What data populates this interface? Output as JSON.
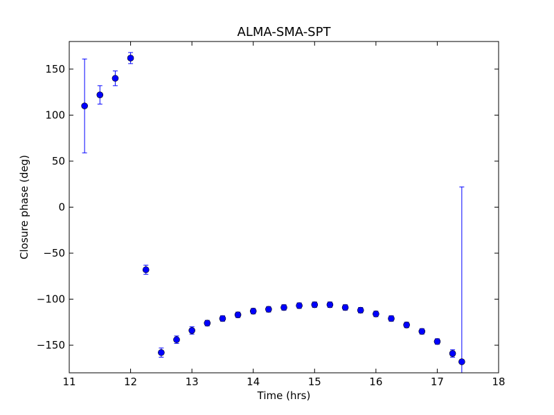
{
  "chart_data": {
    "type": "scatter",
    "title": "ALMA-SMA-SPT",
    "xlabel": "Time (hrs)",
    "ylabel": "Closure phase (deg)",
    "xlim": [
      11,
      18
    ],
    "ylim": [
      -180,
      180
    ],
    "xticks": [
      11,
      12,
      13,
      14,
      15,
      16,
      17,
      18
    ],
    "yticks": [
      -150,
      -100,
      -50,
      0,
      50,
      100,
      150
    ],
    "xtick_labels": [
      "11",
      "12",
      "13",
      "14",
      "15",
      "16",
      "17",
      "18"
    ],
    "ytick_labels": [
      "−150",
      "−100",
      "−50",
      "0",
      "50",
      "100",
      "150"
    ],
    "grid": false,
    "marker_color": "#0000ff",
    "marker_edge_color": "#000000",
    "errorbar_color": "#0000ff",
    "points": [
      {
        "x": 11.25,
        "y": 110,
        "err": 51
      },
      {
        "x": 11.5,
        "y": 122,
        "err": 10
      },
      {
        "x": 11.75,
        "y": 140,
        "err": 8
      },
      {
        "x": 12.0,
        "y": 162,
        "err": 6
      },
      {
        "x": 12.25,
        "y": -68,
        "err": 5
      },
      {
        "x": 12.5,
        "y": -158,
        "err": 5
      },
      {
        "x": 12.75,
        "y": -144,
        "err": 4
      },
      {
        "x": 13.0,
        "y": -134,
        "err": 4
      },
      {
        "x": 13.25,
        "y": -126,
        "err": 3
      },
      {
        "x": 13.5,
        "y": -121,
        "err": 3
      },
      {
        "x": 13.75,
        "y": -117,
        "err": 3
      },
      {
        "x": 14.0,
        "y": -113,
        "err": 3
      },
      {
        "x": 14.25,
        "y": -111,
        "err": 3
      },
      {
        "x": 14.5,
        "y": -109,
        "err": 3
      },
      {
        "x": 14.75,
        "y": -107,
        "err": 3
      },
      {
        "x": 15.0,
        "y": -106,
        "err": 3
      },
      {
        "x": 15.25,
        "y": -106,
        "err": 3
      },
      {
        "x": 15.5,
        "y": -109,
        "err": 3
      },
      {
        "x": 15.75,
        "y": -112,
        "err": 3
      },
      {
        "x": 16.0,
        "y": -116,
        "err": 3
      },
      {
        "x": 16.25,
        "y": -121,
        "err": 3
      },
      {
        "x": 16.5,
        "y": -128,
        "err": 3
      },
      {
        "x": 16.75,
        "y": -135,
        "err": 3
      },
      {
        "x": 17.0,
        "y": -146,
        "err": 3
      },
      {
        "x": 17.25,
        "y": -159,
        "err": 4
      },
      {
        "x": 17.4,
        "y": -168,
        "err": 190
      }
    ]
  }
}
